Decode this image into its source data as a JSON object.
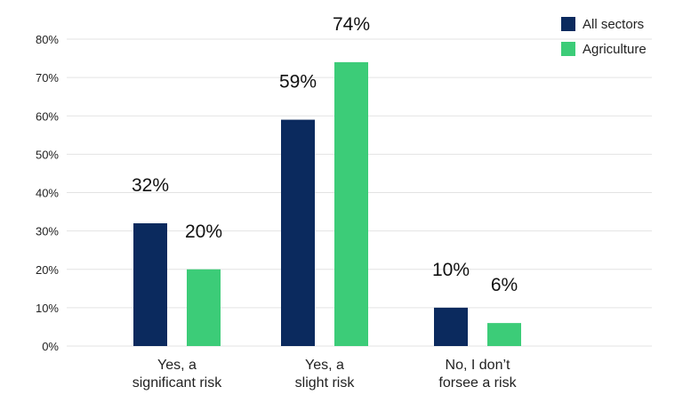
{
  "chart_data": {
    "type": "bar",
    "title": "",
    "xlabel": "",
    "ylabel": "",
    "ylim": [
      0,
      80
    ],
    "y_ticks": [
      "0%",
      "10%",
      "20%",
      "30%",
      "40%",
      "50%",
      "60%",
      "70%",
      "80%"
    ],
    "y_tick_values": [
      0,
      10,
      20,
      30,
      40,
      50,
      60,
      70,
      80
    ],
    "grid": true,
    "legend_position": "top-right",
    "categories": [
      [
        "Yes, a",
        "significant risk"
      ],
      [
        "Yes, a",
        "slight risk"
      ],
      [
        "No, I don’t",
        "forsee a risk"
      ]
    ],
    "series": [
      {
        "name": "All sectors",
        "color": "#0b2a5e",
        "values": [
          32,
          59,
          10
        ],
        "labels": [
          "32%",
          "59%",
          "10%"
        ]
      },
      {
        "name": "Agriculture",
        "color": "#3ccc78",
        "values": [
          20,
          74,
          6
        ],
        "labels": [
          "20%",
          "74%",
          "6%"
        ]
      }
    ]
  }
}
